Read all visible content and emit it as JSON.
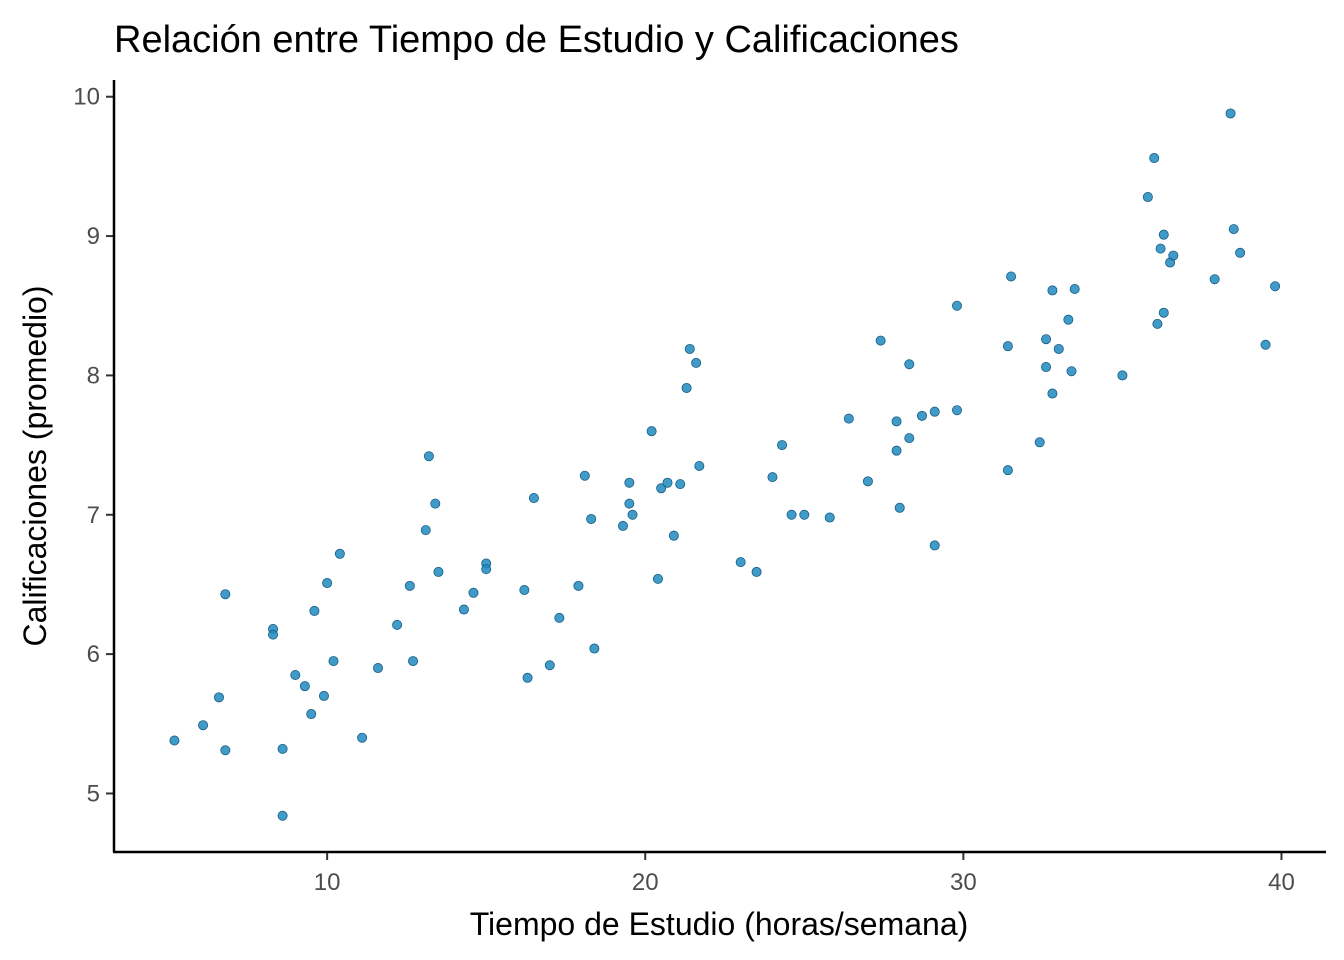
{
  "chart_data": {
    "type": "scatter",
    "title": "Relación entre Tiempo de Estudio y Calificaciones",
    "xlabel": "Tiempo de Estudio (horas/semana)",
    "ylabel": "Calificaciones (promedio)",
    "xlim": [
      3.3,
      41.4
    ],
    "ylim": [
      4.58,
      10.12
    ],
    "xticks": [
      10,
      20,
      30,
      40
    ],
    "yticks": [
      5,
      6,
      7,
      8,
      9,
      10
    ],
    "xtick_labels": [
      "10",
      "20",
      "30",
      "40"
    ],
    "ytick_labels": [
      "5",
      "6",
      "7",
      "8",
      "9",
      "10"
    ],
    "grid": false,
    "legend": "none",
    "point_color": "#1f8ac0",
    "x": [
      5.2,
      6.1,
      6.6,
      6.8,
      6.8,
      8.3,
      8.3,
      8.6,
      8.6,
      9.0,
      9.3,
      9.5,
      9.6,
      9.9,
      10.0,
      10.2,
      10.4,
      11.1,
      11.6,
      12.2,
      12.6,
      12.7,
      13.1,
      13.2,
      13.4,
      13.5,
      14.3,
      14.6,
      15.0,
      15.0,
      16.2,
      16.3,
      16.5,
      17.0,
      17.3,
      17.9,
      18.1,
      18.3,
      18.4,
      19.3,
      19.5,
      19.5,
      19.6,
      20.2,
      20.4,
      20.5,
      20.7,
      20.9,
      21.1,
      21.3,
      21.4,
      21.6,
      21.7,
      23.0,
      23.5,
      24.0,
      24.3,
      24.6,
      25.0,
      25.8,
      26.4,
      27.0,
      27.4,
      27.9,
      27.9,
      28.0,
      28.3,
      28.3,
      28.7,
      29.1,
      29.1,
      29.8,
      29.8,
      31.4,
      31.4,
      31.5,
      32.4,
      32.6,
      32.6,
      32.8,
      32.8,
      33.0,
      33.3,
      33.4,
      33.5,
      35.0,
      35.8,
      36.0,
      36.1,
      36.2,
      36.3,
      36.3,
      36.5,
      36.6,
      37.9,
      38.4,
      38.5,
      38.7,
      39.5,
      39.8
    ],
    "y": [
      5.38,
      5.49,
      5.69,
      6.43,
      5.31,
      6.18,
      6.14,
      5.32,
      4.84,
      5.85,
      5.77,
      5.57,
      6.31,
      5.7,
      6.51,
      5.95,
      6.72,
      5.4,
      5.9,
      6.21,
      6.49,
      5.95,
      6.89,
      7.42,
      7.08,
      6.59,
      6.32,
      6.44,
      6.65,
      6.61,
      6.46,
      5.83,
      7.12,
      5.92,
      6.26,
      6.49,
      7.28,
      6.97,
      6.04,
      6.92,
      7.08,
      7.23,
      7.0,
      7.6,
      6.54,
      7.19,
      7.23,
      6.85,
      7.22,
      7.91,
      8.19,
      8.09,
      7.35,
      6.66,
      6.59,
      7.27,
      7.5,
      7.0,
      7.0,
      6.98,
      7.69,
      7.24,
      8.25,
      7.67,
      7.46,
      7.05,
      7.55,
      8.08,
      7.71,
      7.74,
      6.78,
      8.5,
      7.75,
      8.21,
      7.32,
      8.71,
      7.52,
      8.26,
      8.06,
      8.61,
      7.87,
      8.19,
      8.4,
      8.03,
      8.62,
      8.0,
      9.28,
      9.56,
      8.37,
      8.91,
      9.01,
      8.45,
      8.81,
      8.86,
      8.69,
      9.88,
      9.05,
      8.88,
      8.22,
      8.64
    ]
  }
}
